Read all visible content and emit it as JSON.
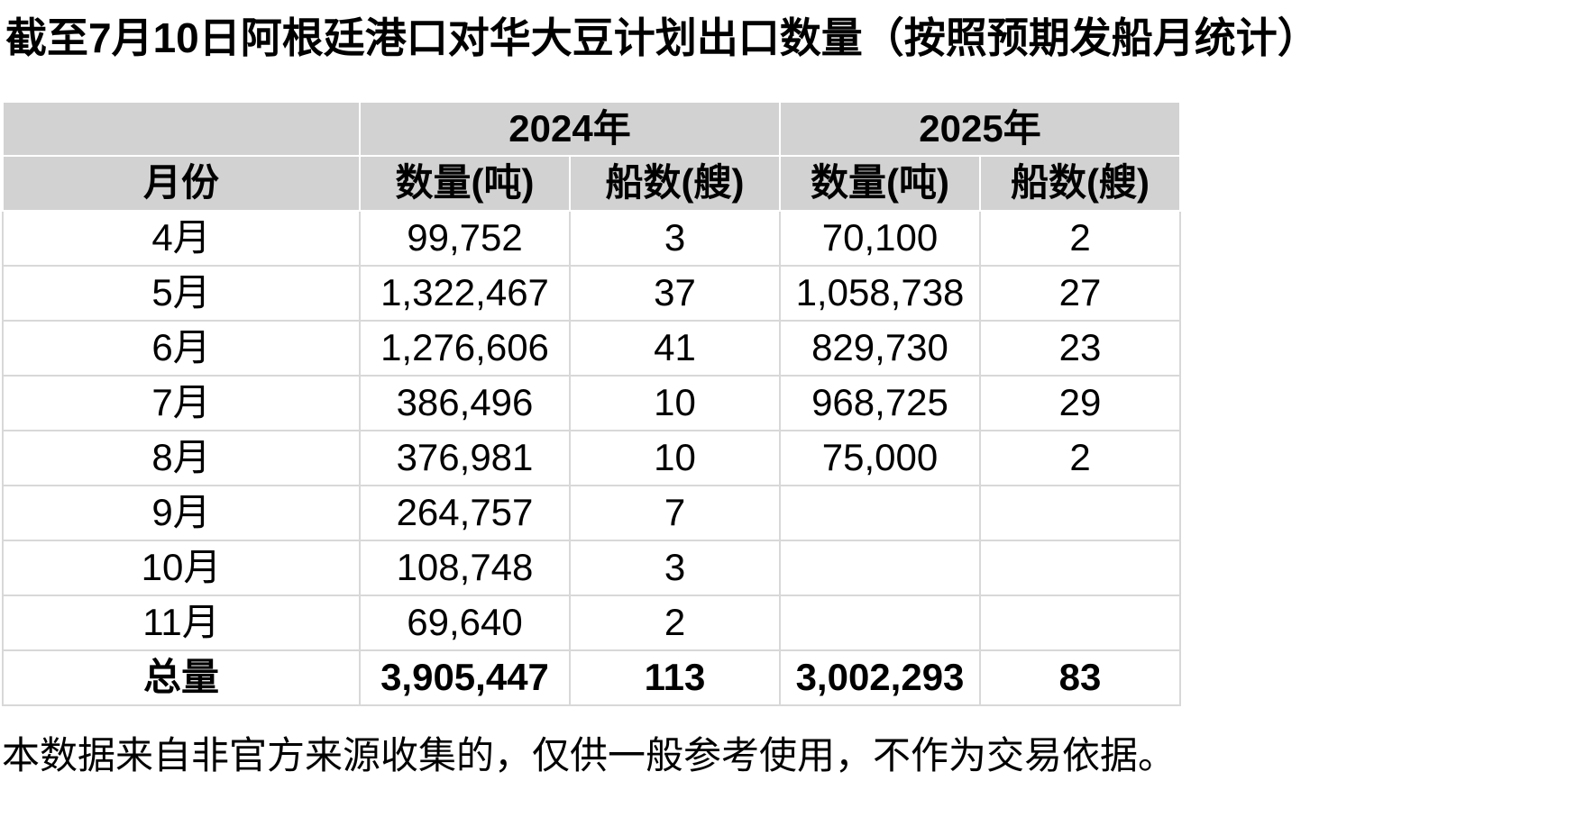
{
  "page": {
    "title": "截至7月10日阿根廷港口对华大豆计划出口数量（按照预期发船月统计）",
    "footnote": "本数据来自非官方来源收集的，仅供一般参考使用，不作为交易依据。"
  },
  "table": {
    "year_headers": [
      "2024年",
      "2025年"
    ],
    "columns": [
      "月份",
      "数量(吨)",
      "船数(艘)",
      "数量(吨)",
      "船数(艘)"
    ],
    "rows": [
      {
        "month": "4月",
        "qty2024": "99,752",
        "ships2024": "3",
        "qty2025": "70,100",
        "ships2025": "2"
      },
      {
        "month": "5月",
        "qty2024": "1,322,467",
        "ships2024": "37",
        "qty2025": "1,058,738",
        "ships2025": "27"
      },
      {
        "month": "6月",
        "qty2024": "1,276,606",
        "ships2024": "41",
        "qty2025": "829,730",
        "ships2025": "23"
      },
      {
        "month": "7月",
        "qty2024": "386,496",
        "ships2024": "10",
        "qty2025": "968,725",
        "ships2025": "29"
      },
      {
        "month": "8月",
        "qty2024": "376,981",
        "ships2024": "10",
        "qty2025": "75,000",
        "ships2025": "2"
      },
      {
        "month": "9月",
        "qty2024": "264,757",
        "ships2024": "7",
        "qty2025": "",
        "ships2025": ""
      },
      {
        "month": "10月",
        "qty2024": "108,748",
        "ships2024": "3",
        "qty2025": "",
        "ships2025": ""
      },
      {
        "month": "11月",
        "qty2024": "69,640",
        "ships2024": "2",
        "qty2025": "",
        "ships2025": ""
      }
    ],
    "total_row": {
      "month": "总量",
      "qty2024": "3,905,447",
      "ships2024": "113",
      "qty2025": "3,002,293",
      "ships2025": "83"
    }
  },
  "chart_data": {
    "type": "table",
    "title": "截至7月10日阿根廷港口对华大豆计划出口数量（按照预期发船月统计）",
    "categories": [
      "4月",
      "5月",
      "6月",
      "7月",
      "8月",
      "9月",
      "10月",
      "11月",
      "总量"
    ],
    "series": [
      {
        "name": "2024年 数量(吨)",
        "values": [
          99752,
          1322467,
          1276606,
          386496,
          376981,
          264757,
          108748,
          69640,
          3905447
        ]
      },
      {
        "name": "2024年 船数(艘)",
        "values": [
          3,
          37,
          41,
          10,
          10,
          7,
          3,
          2,
          113
        ]
      },
      {
        "name": "2025年 数量(吨)",
        "values": [
          70100,
          1058738,
          829730,
          968725,
          75000,
          null,
          null,
          null,
          3002293
        ]
      },
      {
        "name": "2025年 船数(艘)",
        "values": [
          2,
          27,
          23,
          29,
          2,
          null,
          null,
          null,
          83
        ]
      }
    ]
  },
  "colors": {
    "header_bg": "#d2d2d2",
    "header_divider": "#ffffff",
    "grid_line": "#d8d8d8",
    "text": "#000000",
    "page_bg": "#ffffff"
  }
}
